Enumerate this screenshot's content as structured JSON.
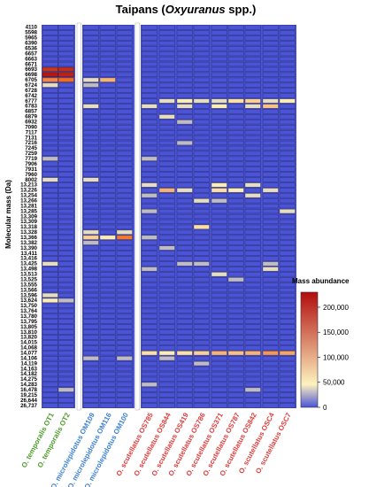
{
  "chart_data": {
    "type": "heatmap",
    "title_main": "Taipans (",
    "title_italic": "Oxyuranus",
    "title_end": " spp.)",
    "ylabel": "Molecular mass (Da)",
    "legend_title": "Mass abundance",
    "legend_ticks": [
      "0",
      "50,000",
      "100,000",
      "150,000",
      "200,000"
    ],
    "legend_values": [
      0,
      50000,
      100000,
      150000,
      200000
    ],
    "legend_max": 230000,
    "colors": {
      "low": "#4b54d6",
      "mid": "#fdf2bf",
      "high": "#b10d0d",
      "divider": "#ffffff",
      "group_temporalis": "#4e9a2a",
      "group_microlepidotus": "#3a7fd0",
      "group_scutellatus": "#e03b3b"
    },
    "columns": [
      {
        "label": "O. temporalis OT1",
        "group": "temporalis"
      },
      {
        "label": "O. temporalis OT2",
        "group": "temporalis"
      },
      {
        "label": "O. microlepidotus OM109",
        "group": "microlepidotus"
      },
      {
        "label": "O. microlepidotus OM116",
        "group": "microlepidotus"
      },
      {
        "label": "O. microlepidotus OM100",
        "group": "microlepidotus"
      },
      {
        "label": "O. scutellatus OS785",
        "group": "scutellatus"
      },
      {
        "label": "O. scutellatus OS844",
        "group": "scutellatus"
      },
      {
        "label": "O. scutellatus OS419",
        "group": "scutellatus"
      },
      {
        "label": "O. scutellatus OS786",
        "group": "scutellatus"
      },
      {
        "label": "O. scutellatus OS371",
        "group": "scutellatus"
      },
      {
        "label": "O. scutellatus OS787",
        "group": "scutellatus"
      },
      {
        "label": "O. scutellatus OS842",
        "group": "scutellatus"
      },
      {
        "label": "O. scutellatus OSC4",
        "group": "scutellatus"
      },
      {
        "label": "O. scutellatus OSC7",
        "group": "scutellatus"
      }
    ],
    "rows": [
      "4110",
      "5598",
      "5965",
      "6390",
      "6536",
      "6657",
      "6663",
      "6671",
      "6693",
      "6698",
      "6705",
      "6724",
      "6728",
      "6742",
      "6777",
      "6783",
      "6857",
      "6879",
      "6932",
      "7090",
      "7117",
      "7131",
      "7216",
      "7245",
      "7259",
      "7719",
      "7906",
      "7931",
      "7960",
      "8002",
      "13,213",
      "13,226",
      "13,254",
      "13,266",
      "13,281",
      "13,285",
      "13,309",
      "13,309",
      "13,318",
      "13,328",
      "13,366",
      "13,382",
      "13,390",
      "13,411",
      "13,416",
      "13,425",
      "13,498",
      "13,513",
      "13,525",
      "13,555",
      "13,566",
      "13,596",
      "13,624",
      "13,750",
      "13,764",
      "13,780",
      "13,795",
      "13,805",
      "13,810",
      "13,820",
      "14,015",
      "14,068",
      "14,077",
      "14,106",
      "14,119",
      "14,163",
      "14,182",
      "14,275",
      "14,283",
      "16,478",
      "19,215",
      "26,644",
      "26,737"
    ],
    "red_row_labels": [
      "6698",
      "6705"
    ],
    "highlights": [
      {
        "row": "6693",
        "col": 0,
        "value": 190000
      },
      {
        "row": "6693",
        "col": 1,
        "value": 200000
      },
      {
        "row": "6698",
        "col": 0,
        "value": 220000
      },
      {
        "row": "6698",
        "col": 1,
        "value": 210000
      },
      {
        "row": "6705",
        "col": 0,
        "value": 120000
      },
      {
        "row": "6705",
        "col": 1,
        "value": 140000
      },
      {
        "row": "6724",
        "col": 0,
        "value": 40000
      },
      {
        "row": "6705",
        "col": 2,
        "value": 40000
      },
      {
        "row": "6705",
        "col": 3,
        "value": 90000
      },
      {
        "row": "6724",
        "col": 2,
        "value": 30000
      },
      {
        "row": "6777",
        "col": 6,
        "value": 40000
      },
      {
        "row": "6777",
        "col": 7,
        "value": 50000
      },
      {
        "row": "6777",
        "col": 8,
        "value": 40000
      },
      {
        "row": "6777",
        "col": 9,
        "value": 40000
      },
      {
        "row": "6777",
        "col": 10,
        "value": 60000
      },
      {
        "row": "6777",
        "col": 11,
        "value": 70000
      },
      {
        "row": "6777",
        "col": 12,
        "value": 40000
      },
      {
        "row": "6777",
        "col": 13,
        "value": 50000
      },
      {
        "row": "6783",
        "col": 2,
        "value": 40000
      },
      {
        "row": "6783",
        "col": 5,
        "value": 40000
      },
      {
        "row": "6783",
        "col": 7,
        "value": 40000
      },
      {
        "row": "6783",
        "col": 9,
        "value": 50000
      },
      {
        "row": "6783",
        "col": 11,
        "value": 40000
      },
      {
        "row": "6783",
        "col": 12,
        "value": 80000
      },
      {
        "row": "6879",
        "col": 6,
        "value": 40000
      },
      {
        "row": "6932",
        "col": 7,
        "value": 30000
      },
      {
        "row": "7216",
        "col": 7,
        "value": 30000
      },
      {
        "row": "7719",
        "col": 0,
        "value": 30000
      },
      {
        "row": "7719",
        "col": 5,
        "value": 30000
      },
      {
        "row": "8002",
        "col": 0,
        "value": 40000
      },
      {
        "row": "8002",
        "col": 2,
        "value": 40000
      },
      {
        "row": "13,213",
        "col": 5,
        "value": 40000
      },
      {
        "row": "13,213",
        "col": 9,
        "value": 50000
      },
      {
        "row": "13,213",
        "col": 11,
        "value": 40000
      },
      {
        "row": "13,226",
        "col": 6,
        "value": 90000
      },
      {
        "row": "13,226",
        "col": 7,
        "value": 40000
      },
      {
        "row": "13,226",
        "col": 9,
        "value": 60000
      },
      {
        "row": "13,226",
        "col": 10,
        "value": 50000
      },
      {
        "row": "13,226",
        "col": 12,
        "value": 40000
      },
      {
        "row": "13,254",
        "col": 5,
        "value": 30000
      },
      {
        "row": "13,254",
        "col": 11,
        "value": 40000
      },
      {
        "row": "13,266",
        "col": 8,
        "value": 40000
      },
      {
        "row": "13,266",
        "col": 9,
        "value": 30000
      },
      {
        "row": "13,285",
        "col": 5,
        "value": 30000
      },
      {
        "row": "13,285",
        "col": 13,
        "value": 40000
      },
      {
        "row": "13,318",
        "col": 8,
        "value": 60000
      },
      {
        "row": "13,328",
        "col": 2,
        "value": 40000
      },
      {
        "row": "13,328",
        "col": 4,
        "value": 40000
      },
      {
        "row": "13,366",
        "col": 2,
        "value": 70000
      },
      {
        "row": "13,366",
        "col": 3,
        "value": 50000
      },
      {
        "row": "13,366",
        "col": 4,
        "value": 130000
      },
      {
        "row": "13,366",
        "col": 5,
        "value": 30000
      },
      {
        "row": "13,382",
        "col": 2,
        "value": 30000
      },
      {
        "row": "13,390",
        "col": 6,
        "value": 30000
      },
      {
        "row": "13,425",
        "col": 0,
        "value": 40000
      },
      {
        "row": "13,425",
        "col": 7,
        "value": 30000
      },
      {
        "row": "13,425",
        "col": 8,
        "value": 30000
      },
      {
        "row": "13,425",
        "col": 12,
        "value": 30000
      },
      {
        "row": "13,498",
        "col": 5,
        "value": 30000
      },
      {
        "row": "13,498",
        "col": 12,
        "value": 40000
      },
      {
        "row": "13,513",
        "col": 9,
        "value": 40000
      },
      {
        "row": "13,525",
        "col": 10,
        "value": 30000
      },
      {
        "row": "13,596",
        "col": 0,
        "value": 40000
      },
      {
        "row": "13,624",
        "col": 0,
        "value": 50000
      },
      {
        "row": "13,624",
        "col": 1,
        "value": 30000
      },
      {
        "row": "14,077",
        "col": 5,
        "value": 60000
      },
      {
        "row": "14,077",
        "col": 6,
        "value": 50000
      },
      {
        "row": "14,077",
        "col": 7,
        "value": 60000
      },
      {
        "row": "14,077",
        "col": 8,
        "value": 70000
      },
      {
        "row": "14,077",
        "col": 9,
        "value": 90000
      },
      {
        "row": "14,077",
        "col": 10,
        "value": 80000
      },
      {
        "row": "14,077",
        "col": 11,
        "value": 90000
      },
      {
        "row": "14,077",
        "col": 12,
        "value": 110000
      },
      {
        "row": "14,077",
        "col": 13,
        "value": 100000
      },
      {
        "row": "14,106",
        "col": 2,
        "value": 30000
      },
      {
        "row": "14,106",
        "col": 4,
        "value": 30000
      },
      {
        "row": "14,106",
        "col": 6,
        "value": 30000
      },
      {
        "row": "14,119",
        "col": 8,
        "value": 30000
      },
      {
        "row": "14,283",
        "col": 5,
        "value": 30000
      },
      {
        "row": "16,478",
        "col": 1,
        "value": 30000
      },
      {
        "row": "16,478",
        "col": 11,
        "value": 30000
      }
    ]
  }
}
